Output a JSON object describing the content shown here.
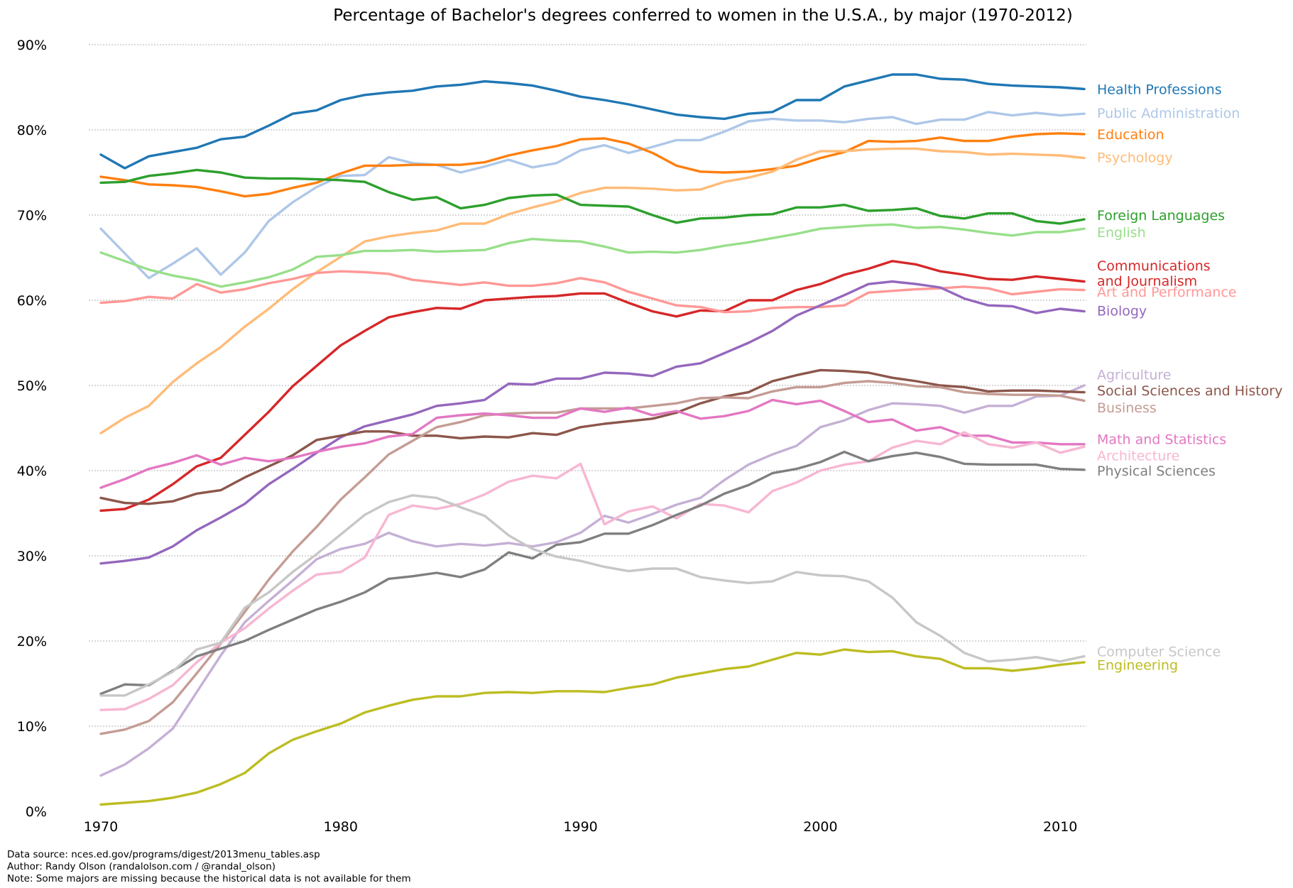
{
  "chart_data": {
    "type": "line",
    "title": "Percentage of Bachelor's degrees conferred to women in the U.S.A., by major (1970-2012)",
    "xlabel": "",
    "ylabel": "",
    "xlim": [
      1968,
      2011
    ],
    "ylim": [
      0,
      90
    ],
    "x_ticks": [
      1970,
      1980,
      1990,
      2000,
      2010
    ],
    "x_tick_labels": [
      "1970",
      "1980",
      "1990",
      "2000",
      "2010"
    ],
    "y_ticks": [
      0,
      10,
      20,
      30,
      40,
      50,
      60,
      70,
      80,
      90
    ],
    "y_tick_labels": [
      "0%",
      "10%",
      "20%",
      "30%",
      "40%",
      "50%",
      "60%",
      "70%",
      "80%",
      "90%"
    ],
    "grid": "horizontal dotted",
    "legend": "labels at right end of each line",
    "x": [
      1970,
      1971,
      1972,
      1973,
      1974,
      1975,
      1976,
      1977,
      1978,
      1979,
      1980,
      1981,
      1982,
      1983,
      1984,
      1985,
      1986,
      1987,
      1988,
      1989,
      1990,
      1991,
      1992,
      1993,
      1994,
      1995,
      1996,
      1997,
      1998,
      1999,
      2000,
      2001,
      2002,
      2003,
      2004,
      2005,
      2006,
      2007,
      2008,
      2009,
      2010,
      2011
    ],
    "series": [
      {
        "name": "Health Professions",
        "color": "#1f77b4",
        "label_y": 84.8,
        "values": [
          77.1,
          75.5,
          76.9,
          77.4,
          77.9,
          78.9,
          79.2,
          80.5,
          81.9,
          82.3,
          83.5,
          84.1,
          84.4,
          84.6,
          85.1,
          85.3,
          85.7,
          85.5,
          85.2,
          84.6,
          83.9,
          83.5,
          83.0,
          82.4,
          81.8,
          81.5,
          81.3,
          81.9,
          82.1,
          83.5,
          83.5,
          85.1,
          85.8,
          86.5,
          86.5,
          86.0,
          85.9,
          85.4,
          85.2,
          85.1,
          85.0,
          84.8
        ]
      },
      {
        "name": "Public Administration",
        "color": "#aec7e8",
        "label_y": 82.0,
        "values": [
          68.4,
          65.5,
          62.6,
          64.3,
          66.1,
          63.0,
          65.6,
          69.3,
          71.5,
          73.3,
          74.6,
          74.7,
          76.8,
          76.1,
          75.9,
          75.0,
          75.7,
          76.5,
          75.6,
          76.1,
          77.6,
          78.2,
          77.3,
          78.0,
          78.8,
          78.8,
          79.8,
          81.0,
          81.3,
          81.1,
          81.1,
          80.9,
          81.3,
          81.5,
          80.7,
          81.2,
          81.2,
          82.1,
          81.7,
          82.0,
          81.7,
          81.9
        ]
      },
      {
        "name": "Education",
        "color": "#ff7f0e",
        "label_y": 79.5,
        "values": [
          74.5,
          74.1,
          73.6,
          73.5,
          73.3,
          72.8,
          72.2,
          72.5,
          73.2,
          73.8,
          74.9,
          75.8,
          75.8,
          75.9,
          75.9,
          75.9,
          76.2,
          77.0,
          77.6,
          78.1,
          78.9,
          79.0,
          78.4,
          77.3,
          75.8,
          75.1,
          75.0,
          75.1,
          75.4,
          75.8,
          76.7,
          77.4,
          78.7,
          78.6,
          78.7,
          79.1,
          78.7,
          78.7,
          79.2,
          79.5,
          79.6,
          79.5
        ]
      },
      {
        "name": "Psychology",
        "color": "#ffbb78",
        "label_y": 76.8,
        "values": [
          44.4,
          46.2,
          47.6,
          50.4,
          52.6,
          54.5,
          56.9,
          59.0,
          61.3,
          63.3,
          65.1,
          66.9,
          67.5,
          67.9,
          68.2,
          69.0,
          69.0,
          70.1,
          70.9,
          71.6,
          72.6,
          73.2,
          73.2,
          73.1,
          72.9,
          73.0,
          73.9,
          74.4,
          75.1,
          76.5,
          77.5,
          77.5,
          77.7,
          77.8,
          77.8,
          77.5,
          77.4,
          77.1,
          77.2,
          77.1,
          77.0,
          76.7
        ]
      },
      {
        "name": "Foreign Languages",
        "color": "#2ca02c",
        "label_y": 70.0,
        "values": [
          73.8,
          73.9,
          74.6,
          74.9,
          75.3,
          75.0,
          74.4,
          74.3,
          74.3,
          74.2,
          74.1,
          73.9,
          72.7,
          71.8,
          72.1,
          70.8,
          71.2,
          72.0,
          72.3,
          72.4,
          71.2,
          71.1,
          71.0,
          70.0,
          69.1,
          69.6,
          69.7,
          70.0,
          70.1,
          70.9,
          70.9,
          71.2,
          70.5,
          70.6,
          70.8,
          69.9,
          69.6,
          70.2,
          70.2,
          69.3,
          69.0,
          69.5
        ]
      },
      {
        "name": "English",
        "color": "#98df8a",
        "label_y": 68.0,
        "values": [
          65.6,
          64.6,
          63.6,
          62.9,
          62.4,
          61.6,
          62.1,
          62.7,
          63.6,
          65.1,
          65.3,
          65.8,
          65.8,
          65.9,
          65.7,
          65.8,
          65.9,
          66.7,
          67.2,
          67.0,
          66.9,
          66.3,
          65.6,
          65.7,
          65.6,
          65.9,
          66.4,
          66.8,
          67.3,
          67.8,
          68.4,
          68.6,
          68.8,
          68.9,
          68.5,
          68.6,
          68.3,
          67.9,
          67.6,
          68.0,
          68.0,
          68.4
        ]
      },
      {
        "name": "Communications and Journalism",
        "label_lines": [
          "Communications",
          "and Journalism"
        ],
        "color": "#d62728",
        "label_y": 62.3,
        "values": [
          35.3,
          35.5,
          36.6,
          38.4,
          40.5,
          41.5,
          44.2,
          46.9,
          49.9,
          52.3,
          54.7,
          56.4,
          58.0,
          58.6,
          59.1,
          59.0,
          60.0,
          60.2,
          60.4,
          60.5,
          60.8,
          60.8,
          59.7,
          58.7,
          58.1,
          58.8,
          58.7,
          60.0,
          60.0,
          61.2,
          61.9,
          63.0,
          63.7,
          64.6,
          64.2,
          63.4,
          63.0,
          62.5,
          62.4,
          62.8,
          62.5,
          62.2
        ]
      },
      {
        "name": "Art and Performance",
        "color": "#ff9896",
        "label_y": 61.0,
        "values": [
          59.7,
          59.9,
          60.4,
          60.2,
          61.9,
          60.9,
          61.3,
          62.0,
          62.5,
          63.2,
          63.4,
          63.3,
          63.1,
          62.4,
          62.1,
          61.8,
          62.1,
          61.7,
          61.7,
          62.0,
          62.6,
          62.1,
          61.0,
          60.2,
          59.4,
          59.2,
          58.6,
          58.7,
          59.1,
          59.2,
          59.2,
          59.4,
          60.9,
          61.1,
          61.3,
          61.4,
          61.6,
          61.4,
          60.7,
          61.0,
          61.3,
          61.2
        ]
      },
      {
        "name": "Biology",
        "color": "#9467bd",
        "label_y": 58.8,
        "values": [
          29.1,
          29.4,
          29.8,
          31.1,
          33.0,
          34.5,
          36.1,
          38.4,
          40.2,
          42.1,
          43.9,
          45.2,
          45.9,
          46.6,
          47.6,
          47.9,
          48.3,
          50.2,
          50.1,
          50.8,
          50.8,
          51.5,
          51.4,
          51.1,
          52.2,
          52.6,
          53.8,
          55.0,
          56.4,
          58.2,
          59.4,
          60.6,
          61.9,
          62.2,
          61.9,
          61.5,
          60.2,
          59.4,
          59.3,
          58.5,
          59.0,
          58.7
        ]
      },
      {
        "name": "Agriculture",
        "color": "#c5b0d5",
        "label_y": 51.3,
        "values": [
          4.2,
          5.5,
          7.4,
          9.7,
          14.0,
          18.3,
          22.2,
          24.7,
          27.1,
          29.6,
          30.8,
          31.4,
          32.7,
          31.7,
          31.1,
          31.4,
          31.2,
          31.5,
          31.1,
          31.6,
          32.7,
          34.7,
          33.9,
          34.9,
          36.0,
          36.8,
          38.9,
          40.7,
          41.9,
          42.9,
          45.1,
          45.9,
          47.1,
          47.9,
          47.8,
          47.6,
          46.8,
          47.6,
          47.6,
          48.7,
          48.8,
          50.0
        ]
      },
      {
        "name": "Social Sciences and History",
        "color": "#8c564b",
        "label_y": 49.4,
        "values": [
          36.8,
          36.2,
          36.1,
          36.4,
          37.3,
          37.7,
          39.2,
          40.5,
          41.8,
          43.6,
          44.1,
          44.6,
          44.6,
          44.1,
          44.1,
          43.8,
          44.0,
          43.9,
          44.4,
          44.2,
          45.1,
          45.5,
          45.8,
          46.1,
          46.8,
          47.9,
          48.7,
          49.2,
          50.5,
          51.2,
          51.8,
          51.7,
          51.5,
          50.9,
          50.5,
          50.0,
          49.8,
          49.3,
          49.4,
          49.4,
          49.3,
          49.2
        ]
      },
      {
        "name": "Business",
        "color": "#c49c94",
        "label_y": 47.4,
        "values": [
          9.1,
          9.6,
          10.6,
          12.8,
          16.2,
          19.7,
          23.4,
          27.2,
          30.5,
          33.4,
          36.6,
          39.2,
          41.9,
          43.5,
          45.1,
          45.7,
          46.5,
          46.7,
          46.8,
          46.8,
          47.3,
          47.3,
          47.3,
          47.6,
          47.9,
          48.5,
          48.6,
          48.5,
          49.3,
          49.8,
          49.8,
          50.3,
          50.5,
          50.3,
          49.9,
          49.8,
          49.2,
          49.0,
          48.9,
          48.9,
          48.8,
          48.2
        ]
      },
      {
        "name": "Math and Statistics",
        "color": "#e377c2",
        "label_y": 43.7,
        "values": [
          38.0,
          39.0,
          40.2,
          40.9,
          41.8,
          40.7,
          41.5,
          41.1,
          41.5,
          42.2,
          42.8,
          43.2,
          44.0,
          44.3,
          46.2,
          46.5,
          46.7,
          46.5,
          46.2,
          46.2,
          47.3,
          46.9,
          47.4,
          46.5,
          47.0,
          46.1,
          46.4,
          47.0,
          48.3,
          47.8,
          48.2,
          47.0,
          45.7,
          46.0,
          44.7,
          45.1,
          44.1,
          44.1,
          43.3,
          43.3,
          43.1,
          43.1
        ]
      },
      {
        "name": "Architecture",
        "color": "#f7b6d2",
        "label_y": 41.8,
        "values": [
          11.9,
          12.0,
          13.2,
          14.8,
          17.5,
          19.8,
          21.5,
          23.8,
          25.9,
          27.8,
          28.1,
          29.8,
          34.8,
          35.9,
          35.5,
          36.1,
          37.2,
          38.7,
          39.4,
          39.1,
          40.8,
          33.7,
          35.2,
          35.8,
          34.4,
          36.1,
          35.9,
          35.1,
          37.6,
          38.6,
          40.0,
          40.7,
          41.1,
          42.7,
          43.5,
          43.1,
          44.5,
          43.1,
          42.7,
          43.3,
          42.1,
          42.8
        ]
      },
      {
        "name": "Physical Sciences",
        "color": "#7f7f7f",
        "label_y": 40.0,
        "values": [
          13.8,
          14.9,
          14.8,
          16.5,
          18.2,
          19.1,
          20.0,
          21.3,
          22.5,
          23.7,
          24.6,
          25.7,
          27.3,
          27.6,
          28.0,
          27.5,
          28.4,
          30.4,
          29.7,
          31.3,
          31.6,
          32.6,
          32.6,
          33.6,
          34.8,
          35.9,
          37.3,
          38.3,
          39.7,
          40.2,
          41.0,
          42.2,
          41.1,
          41.7,
          42.1,
          41.6,
          40.8,
          40.7,
          40.7,
          40.7,
          40.2,
          40.1
        ]
      },
      {
        "name": "Computer Science",
        "color": "#c7c7c7",
        "label_y": 18.8,
        "values": [
          13.6,
          13.6,
          14.9,
          16.4,
          19.0,
          19.8,
          23.9,
          25.7,
          28.1,
          30.2,
          32.5,
          34.8,
          36.3,
          37.1,
          36.8,
          35.7,
          34.7,
          32.4,
          30.8,
          29.9,
          29.4,
          28.7,
          28.2,
          28.5,
          28.5,
          27.5,
          27.1,
          26.8,
          27.0,
          28.1,
          27.7,
          27.6,
          27.0,
          25.1,
          22.2,
          20.6,
          18.6,
          17.6,
          17.8,
          18.1,
          17.6,
          18.2
        ]
      },
      {
        "name": "Engineering",
        "color": "#bcbd22",
        "label_y": 17.2,
        "values": [
          0.8,
          1.0,
          1.2,
          1.6,
          2.2,
          3.2,
          4.5,
          6.8,
          8.4,
          9.4,
          10.3,
          11.6,
          12.4,
          13.1,
          13.5,
          13.5,
          13.9,
          14.0,
          13.9,
          14.1,
          14.1,
          14.0,
          14.5,
          14.9,
          15.7,
          16.2,
          16.7,
          17.0,
          17.8,
          18.6,
          18.4,
          19.0,
          18.7,
          18.8,
          18.2,
          17.9,
          16.8,
          16.8,
          16.5,
          16.8,
          17.2,
          17.5
        ]
      }
    ]
  },
  "footnotes": {
    "source": "Data source: nces.ed.gov/programs/digest/2013menu_tables.asp",
    "author": "Author: Randy Olson (randalolson.com / @randal_olson)",
    "note": "Note: Some majors are missing because the historical data is not available for them"
  }
}
